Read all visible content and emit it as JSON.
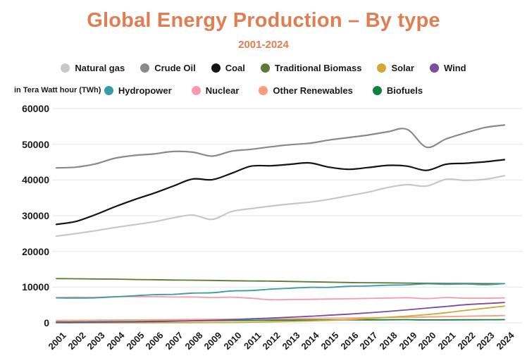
{
  "header": {
    "title": "Global Energy Production – By type",
    "subtitle": "2001-2024",
    "title_color": "#E17D52"
  },
  "axis": {
    "unit_label": "in Tera Watt hour (TWh)"
  },
  "chart_data": {
    "type": "line",
    "title": "Global Energy Production – By type",
    "subtitle": "2001-2024",
    "ylabel": "in Tera Watt hour (TWh)",
    "xlabel": "",
    "ylim": [
      0,
      60000
    ],
    "yticks": [
      60000,
      50000,
      40000,
      30000,
      20000,
      10000,
      0
    ],
    "grid": "horizontal gridlines only, light gray",
    "legend_position": "top, two centered rows of colored dots",
    "x": [
      2001,
      2002,
      2003,
      2004,
      2005,
      2006,
      2007,
      2008,
      2009,
      2010,
      2011,
      2012,
      2013,
      2014,
      2015,
      2016,
      2017,
      2018,
      2019,
      2020,
      2021,
      2022,
      2023,
      2024
    ],
    "legend_rows": [
      [
        "Natural gas",
        "Crude Oil",
        "Coal",
        "Traditional Biomass",
        "Solar",
        "Wind"
      ],
      [
        "Hydropower",
        "Nuclear",
        "Other Renewables",
        "Biofuels"
      ]
    ],
    "series": [
      {
        "name": "Natural gas",
        "color": "#C8C8C8",
        "values": [
          24300,
          25000,
          25800,
          26700,
          27500,
          28300,
          29400,
          30200,
          29000,
          31200,
          32000,
          32700,
          33300,
          33800,
          34600,
          35600,
          36600,
          37900,
          38700,
          38300,
          40200,
          39900,
          40200,
          41200
        ]
      },
      {
        "name": "Crude Oil",
        "color": "#8A8A8A",
        "values": [
          43400,
          43600,
          44500,
          46100,
          46900,
          47300,
          48000,
          47800,
          46700,
          48100,
          48600,
          49300,
          49900,
          50300,
          51200,
          51900,
          52600,
          53500,
          54200,
          49200,
          51500,
          53200,
          54700,
          55400
        ]
      },
      {
        "name": "Coal",
        "color": "#141414",
        "values": [
          27600,
          28400,
          30300,
          32500,
          34500,
          36300,
          38300,
          40300,
          40100,
          41900,
          43900,
          44000,
          44400,
          44800,
          43600,
          43000,
          43500,
          44100,
          43900,
          42700,
          44400,
          44700,
          45100,
          45700
        ]
      },
      {
        "name": "Traditional Biomass",
        "color": "#5C7A35",
        "values": [
          12400,
          12350,
          12300,
          12250,
          12150,
          12100,
          12000,
          11950,
          11900,
          11800,
          11750,
          11700,
          11600,
          11500,
          11400,
          11300,
          11250,
          11200,
          11150,
          11100,
          11050,
          11050,
          11000,
          11000
        ]
      },
      {
        "name": "Solar",
        "color": "#D3A737",
        "values": [
          10,
          10,
          15,
          20,
          25,
          35,
          45,
          65,
          90,
          120,
          200,
          300,
          420,
          560,
          720,
          900,
          1200,
          1550,
          1900,
          2300,
          2850,
          3500,
          4100,
          4700
        ]
      },
      {
        "name": "Wind",
        "color": "#7A4D9F",
        "values": [
          100,
          140,
          180,
          230,
          290,
          360,
          460,
          580,
          720,
          900,
          1150,
          1350,
          1600,
          1850,
          2150,
          2450,
          2800,
          3200,
          3650,
          4150,
          4600,
          5100,
          5400,
          5700
        ]
      },
      {
        "name": "Hydropower",
        "color": "#399BA3",
        "values": [
          7000,
          6950,
          7000,
          7300,
          7600,
          7900,
          8000,
          8350,
          8450,
          8950,
          9050,
          9450,
          9700,
          9950,
          9950,
          10250,
          10350,
          10550,
          10650,
          10950,
          10800,
          10900,
          10700,
          11000
        ]
      },
      {
        "name": "Nuclear",
        "color": "#F89AAB",
        "values": [
          7100,
          7200,
          7150,
          7350,
          7350,
          7350,
          7250,
          7250,
          7100,
          7200,
          6900,
          6500,
          6550,
          6600,
          6700,
          6750,
          6850,
          6950,
          7050,
          6800,
          7100,
          6900,
          6900,
          7000
        ]
      },
      {
        "name": "Other Renewables",
        "color": "#F99D7D",
        "values": [
          700,
          720,
          750,
          780,
          820,
          850,
          900,
          950,
          1000,
          1050,
          1100,
          1150,
          1200,
          1250,
          1300,
          1350,
          1450,
          1500,
          1600,
          1650,
          1750,
          1850,
          1950,
          2050
        ]
      },
      {
        "name": "Biofuels",
        "color": "#0F8140",
        "values": [
          250,
          280,
          310,
          350,
          400,
          450,
          520,
          600,
          650,
          700,
          720,
          750,
          780,
          800,
          820,
          830,
          850,
          870,
          900,
          830,
          850,
          870,
          880,
          900
        ]
      }
    ]
  }
}
